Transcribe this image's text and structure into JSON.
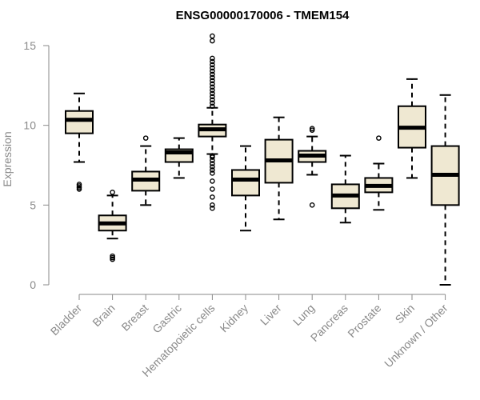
{
  "colors": {
    "box_fill": "#efe8d2",
    "box_stroke": "#000000",
    "axis": "#8a8a8a",
    "text": "#8a8a8a"
  },
  "chart_data": {
    "type": "box",
    "title": "ENSG00000170006 - TMEM154",
    "xlabel": "",
    "ylabel": "Expression",
    "ylim": [
      0,
      15
    ],
    "yticks": [
      0,
      5,
      10,
      15
    ],
    "grid": false,
    "categories": [
      "Bladder",
      "Brain",
      "Breast",
      "Gastric",
      "Hematopoietic cells",
      "Kidney",
      "Liver",
      "Lung",
      "Pancreas",
      "Prostate",
      "Skin",
      "Unknown / Other"
    ],
    "boxes": [
      {
        "category": "Bladder",
        "q1": 9.5,
        "median": 10.35,
        "q3": 10.9,
        "whisker_low": 7.7,
        "whisker_high": 12.0,
        "outliers": [
          6.0,
          6.1,
          6.2,
          6.3
        ]
      },
      {
        "category": "Brain",
        "q1": 3.4,
        "median": 3.85,
        "q3": 4.35,
        "whisker_low": 2.9,
        "whisker_high": 5.6,
        "outliers": [
          1.6,
          1.7,
          1.8,
          5.8
        ]
      },
      {
        "category": "Breast",
        "q1": 5.9,
        "median": 6.6,
        "q3": 7.1,
        "whisker_low": 5.0,
        "whisker_high": 8.7,
        "outliers": [
          9.2
        ]
      },
      {
        "category": "Gastric",
        "q1": 7.7,
        "median": 8.3,
        "q3": 8.5,
        "whisker_low": 6.7,
        "whisker_high": 9.2,
        "outliers": []
      },
      {
        "category": "Hematopoietic cells",
        "q1": 9.3,
        "median": 9.75,
        "q3": 10.05,
        "whisker_low": 8.2,
        "whisker_high": 11.1,
        "outliers": [
          4.8,
          5.0,
          5.5,
          6.0,
          6.5,
          7.0,
          7.2,
          7.4,
          7.6,
          7.8,
          8.0,
          8.1,
          11.2,
          11.4,
          11.6,
          11.8,
          12.0,
          12.2,
          12.4,
          12.6,
          12.8,
          13.0,
          13.2,
          13.4,
          13.6,
          13.8,
          14.0,
          14.2,
          15.3,
          15.6
        ]
      },
      {
        "category": "Kidney",
        "q1": 5.6,
        "median": 6.6,
        "q3": 7.2,
        "whisker_low": 3.4,
        "whisker_high": 8.7,
        "outliers": []
      },
      {
        "category": "Liver",
        "q1": 6.4,
        "median": 7.8,
        "q3": 9.1,
        "whisker_low": 4.1,
        "whisker_high": 10.5,
        "outliers": []
      },
      {
        "category": "Lung",
        "q1": 7.7,
        "median": 8.1,
        "q3": 8.4,
        "whisker_low": 6.9,
        "whisker_high": 9.3,
        "outliers": [
          5.0,
          9.7,
          9.8
        ]
      },
      {
        "category": "Pancreas",
        "q1": 4.8,
        "median": 5.6,
        "q3": 6.3,
        "whisker_low": 3.9,
        "whisker_high": 8.1,
        "outliers": []
      },
      {
        "category": "Prostate",
        "q1": 5.8,
        "median": 6.2,
        "q3": 6.7,
        "whisker_low": 4.7,
        "whisker_high": 7.6,
        "outliers": [
          9.2
        ]
      },
      {
        "category": "Skin",
        "q1": 8.6,
        "median": 9.85,
        "q3": 11.2,
        "whisker_low": 6.7,
        "whisker_high": 12.9,
        "outliers": []
      },
      {
        "category": "Unknown / Other",
        "q1": 5.0,
        "median": 6.9,
        "q3": 8.7,
        "whisker_low": 0.0,
        "whisker_high": 11.9,
        "outliers": []
      }
    ]
  }
}
